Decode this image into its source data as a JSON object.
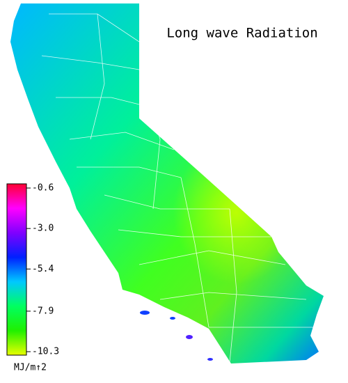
{
  "title": "Long wave Radiation",
  "colorbar": {
    "lim": [
      -0.6,
      -10.3
    ],
    "ticks": [
      -0.6,
      {
        "value": -3,
        "label": "-3.0"
      },
      -5.4,
      -7.9,
      -10.3
    ],
    "colors": [
      "#ff0033",
      "#ff00ff",
      "#8000ff",
      "#0020ff",
      "#00c8ff",
      "#00ff60",
      "#20f000",
      "#e8ff00"
    ],
    "unit": "MJ/m↑2"
  }
}
